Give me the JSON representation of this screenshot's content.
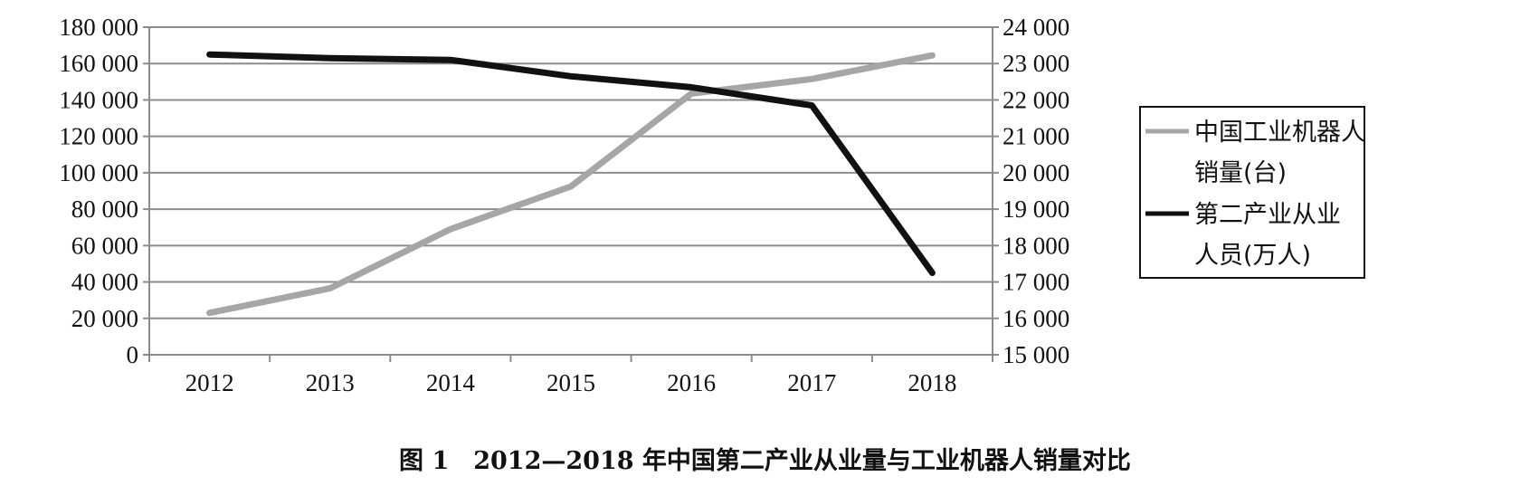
{
  "caption": "图 1　2012—2018 年中国第二产业从业量与工业机器人销量对比",
  "chart_data": {
    "type": "line",
    "title": "图 1　2012—2018 年中国第二产业从业量与工业机器人销量对比",
    "categories": [
      "2012",
      "2013",
      "2014",
      "2015",
      "2016",
      "2017",
      "2018"
    ],
    "y_left": {
      "ylim": [
        0,
        180000
      ],
      "ticks": [
        0,
        20000,
        40000,
        60000,
        80000,
        100000,
        120000,
        140000,
        160000,
        180000
      ],
      "tick_labels": [
        "0",
        "20 000",
        "40 000",
        "60 000",
        "80 000",
        "100 000",
        "120 000",
        "140 000",
        "160 000",
        "180 000"
      ]
    },
    "y_right": {
      "ylim": [
        15000,
        24000
      ],
      "ticks": [
        15000,
        16000,
        17000,
        18000,
        19000,
        20000,
        21000,
        22000,
        23000,
        24000
      ],
      "tick_labels": [
        "15 000",
        "16 000",
        "17 000",
        "18 000",
        "19 000",
        "20 000",
        "21 000",
        "22 000",
        "23 000",
        "24 000"
      ]
    },
    "grid": true,
    "legend_position": "right",
    "series": [
      {
        "name": "中国工业机器人销量(台)",
        "legend_lines": [
          "中国工业机器人",
          "销量(台)"
        ],
        "axis": "left",
        "color": "#a6a6a6",
        "values": [
          23000,
          36500,
          69000,
          92500,
          143500,
          151500,
          164500
        ]
      },
      {
        "name": "第二产业从业人员(万人)",
        "legend_lines": [
          "第二产业从业",
          "人员(万人)"
        ],
        "axis": "right",
        "color": "#111111",
        "values": [
          23250,
          23150,
          23100,
          22650,
          22350,
          21850,
          17250
        ]
      }
    ]
  }
}
